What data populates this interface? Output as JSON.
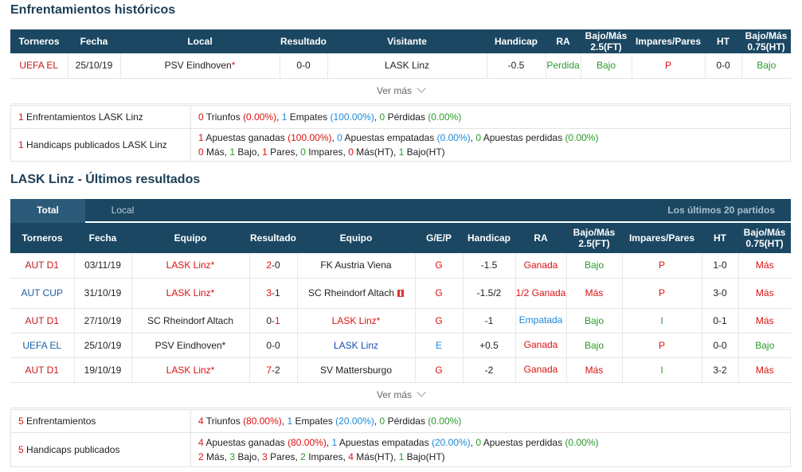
{
  "h2h": {
    "title": "Enfrentamientos históricos",
    "headers": [
      "Torneros",
      "Fecha",
      "Local",
      "Resultado",
      "Visitante",
      "Handicap",
      "RA",
      "Bajo/Más 2.5(FT)",
      "Impares/Pares",
      "HT",
      "Bajo/Más 0.75(HT)"
    ],
    "rows": [
      {
        "comp": "UEFA EL",
        "date": "25/10/19",
        "home": "PSV Eindhoven",
        "home_star": "*",
        "result": "0-0",
        "away": "LASK Linz",
        "handicap": "-0.5",
        "ra": "Perdida",
        "bm": "Bajo",
        "ip": "P",
        "ht": "0-0",
        "bmht": "Bajo"
      }
    ],
    "more": "Ver más",
    "summary": {
      "row1_label": "Enfrentamientos LASK Linz",
      "row1_count": "1",
      "row1": {
        "wins": "0",
        "wins_label": "Triunfos",
        "wins_pct": "(0.00%)",
        "draws": "1",
        "draws_label": "Empates",
        "draws_pct": "(100.00%)",
        "losses": "0",
        "losses_label": "Pérdidas",
        "losses_pct": "(0.00%)"
      },
      "row2_count": "1",
      "row2_label": "Handicaps publicados LASK Linz",
      "row2_line1": {
        "a": "1",
        "a_label": "Apuestas ganadas",
        "a_pct": "(100.00%)",
        "b": "0",
        "b_label": "Apuestas empatadas",
        "b_pct": "(0.00%)",
        "c": "0",
        "c_label": "Apuestas perdidas",
        "c_pct": "(0.00%)"
      },
      "row2_line2": {
        "mas": "0",
        "mas_l": "Más",
        "bajo": "1",
        "bajo_l": "Bajo",
        "pares": "1",
        "pares_l": "Pares",
        "impares": "0",
        "impares_l": "Impares",
        "masht": "0",
        "masht_l": "Más(HT)",
        "bajoht": "1",
        "bajoht_l": "Bajo(HT)"
      }
    }
  },
  "recent": {
    "title": "LASK Linz - Últimos resultados",
    "tabs": [
      "Total",
      "Local"
    ],
    "last_label": "Los últimos 20 partidos",
    "headers": [
      "Torneros",
      "Fecha",
      "Equipo",
      "Resultado",
      "Equipo",
      "G/E/P",
      "Handicap",
      "RA",
      "Bajo/Más 2.5(FT)",
      "Impares/Pares",
      "HT",
      "Bajo/Más 0.75(HT)"
    ],
    "rows": [
      {
        "comp": "AUT D1",
        "comp_color": "red",
        "date": "03/11/19",
        "home": "LASK Linz*",
        "home_color": "red",
        "score_h": "2",
        "score_a": "0",
        "score_hl": "red",
        "score_al": "dark",
        "away": "FK Austria Viena",
        "away_color": "dark",
        "gep": "G",
        "handicap": "-1.5",
        "ra": "Ganada",
        "bm": "Bajo",
        "ip": "P",
        "ht": "1-0",
        "bmht": "Más"
      },
      {
        "comp": "AUT CUP",
        "comp_color": "blue",
        "date": "31/10/19",
        "home": "LASK Linz*",
        "home_color": "red",
        "score_h": "3",
        "score_a": "1",
        "score_hl": "red",
        "score_al": "dark",
        "away": "SC Rheindorf Altach",
        "away_color": "dark",
        "away_flag": true,
        "gep": "G",
        "handicap": "-1.5/2",
        "ra": "1/2 Ganada",
        "bm": "Más",
        "ip": "P",
        "ht": "3-0",
        "bmht": "Más"
      },
      {
        "comp": "AUT D1",
        "comp_color": "red",
        "date": "27/10/19",
        "home": "SC Rheindorf Altach",
        "home_color": "dark",
        "score_h": "0",
        "score_a": "1",
        "score_hl": "dark",
        "score_al": "red",
        "away": "LASK Linz*",
        "away_color": "red",
        "gep": "G",
        "handicap": "-1",
        "ra": "Empatada",
        "bm": "Bajo",
        "ip": "I",
        "ht": "0-1",
        "bmht": "Más"
      },
      {
        "comp": "UEFA EL",
        "comp_color": "blue",
        "date": "25/10/19",
        "home": "PSV Eindhoven*",
        "home_color": "dark",
        "score_h": "0",
        "score_a": "0",
        "score_hl": "dark",
        "score_al": "dark",
        "away": "LASK Linz",
        "away_color": "blue",
        "gep": "E",
        "handicap": "+0.5",
        "ra": "Ganada",
        "bm": "Bajo",
        "ip": "P",
        "ht": "0-0",
        "bmht": "Bajo"
      },
      {
        "comp": "AUT D1",
        "comp_color": "red",
        "date": "19/10/19",
        "home": "LASK Linz*",
        "home_color": "red",
        "score_h": "7",
        "score_a": "2",
        "score_hl": "red",
        "score_al": "dark",
        "away": "SV Mattersburgo",
        "away_color": "dark",
        "gep": "G",
        "handicap": "-2",
        "ra": "Ganada",
        "bm": "Más",
        "ip": "I",
        "ht": "3-2",
        "bmht": "Más"
      }
    ],
    "more": "Ver más",
    "summary": {
      "row1_count": "5",
      "row1_label": "Enfrentamientos",
      "row1": {
        "wins": "4",
        "wins_label": "Triunfos",
        "wins_pct": "(80.00%)",
        "draws": "1",
        "draws_label": "Empates",
        "draws_pct": "(20.00%)",
        "losses": "0",
        "losses_label": "Pérdidas",
        "losses_pct": "(0.00%)"
      },
      "row2_count": "5",
      "row2_label": "Handicaps publicados",
      "row2_line1": {
        "a": "4",
        "a_label": "Apuestas ganadas",
        "a_pct": "(80.00%)",
        "b": "1",
        "b_label": "Apuestas empatadas",
        "b_pct": "(20.00%)",
        "c": "0",
        "c_label": "Apuestas perdidas",
        "c_pct": "(0.00%)"
      },
      "row2_line2": {
        "mas": "2",
        "mas_l": "Más",
        "bajo": "3",
        "bajo_l": "Bajo",
        "pares": "3",
        "pares_l": "Pares",
        "impares": "2",
        "impares_l": "Impares",
        "masht": "4",
        "masht_l": "Más(HT)",
        "bajoht": "1",
        "bajoht_l": "Bajo(HT)"
      }
    }
  }
}
